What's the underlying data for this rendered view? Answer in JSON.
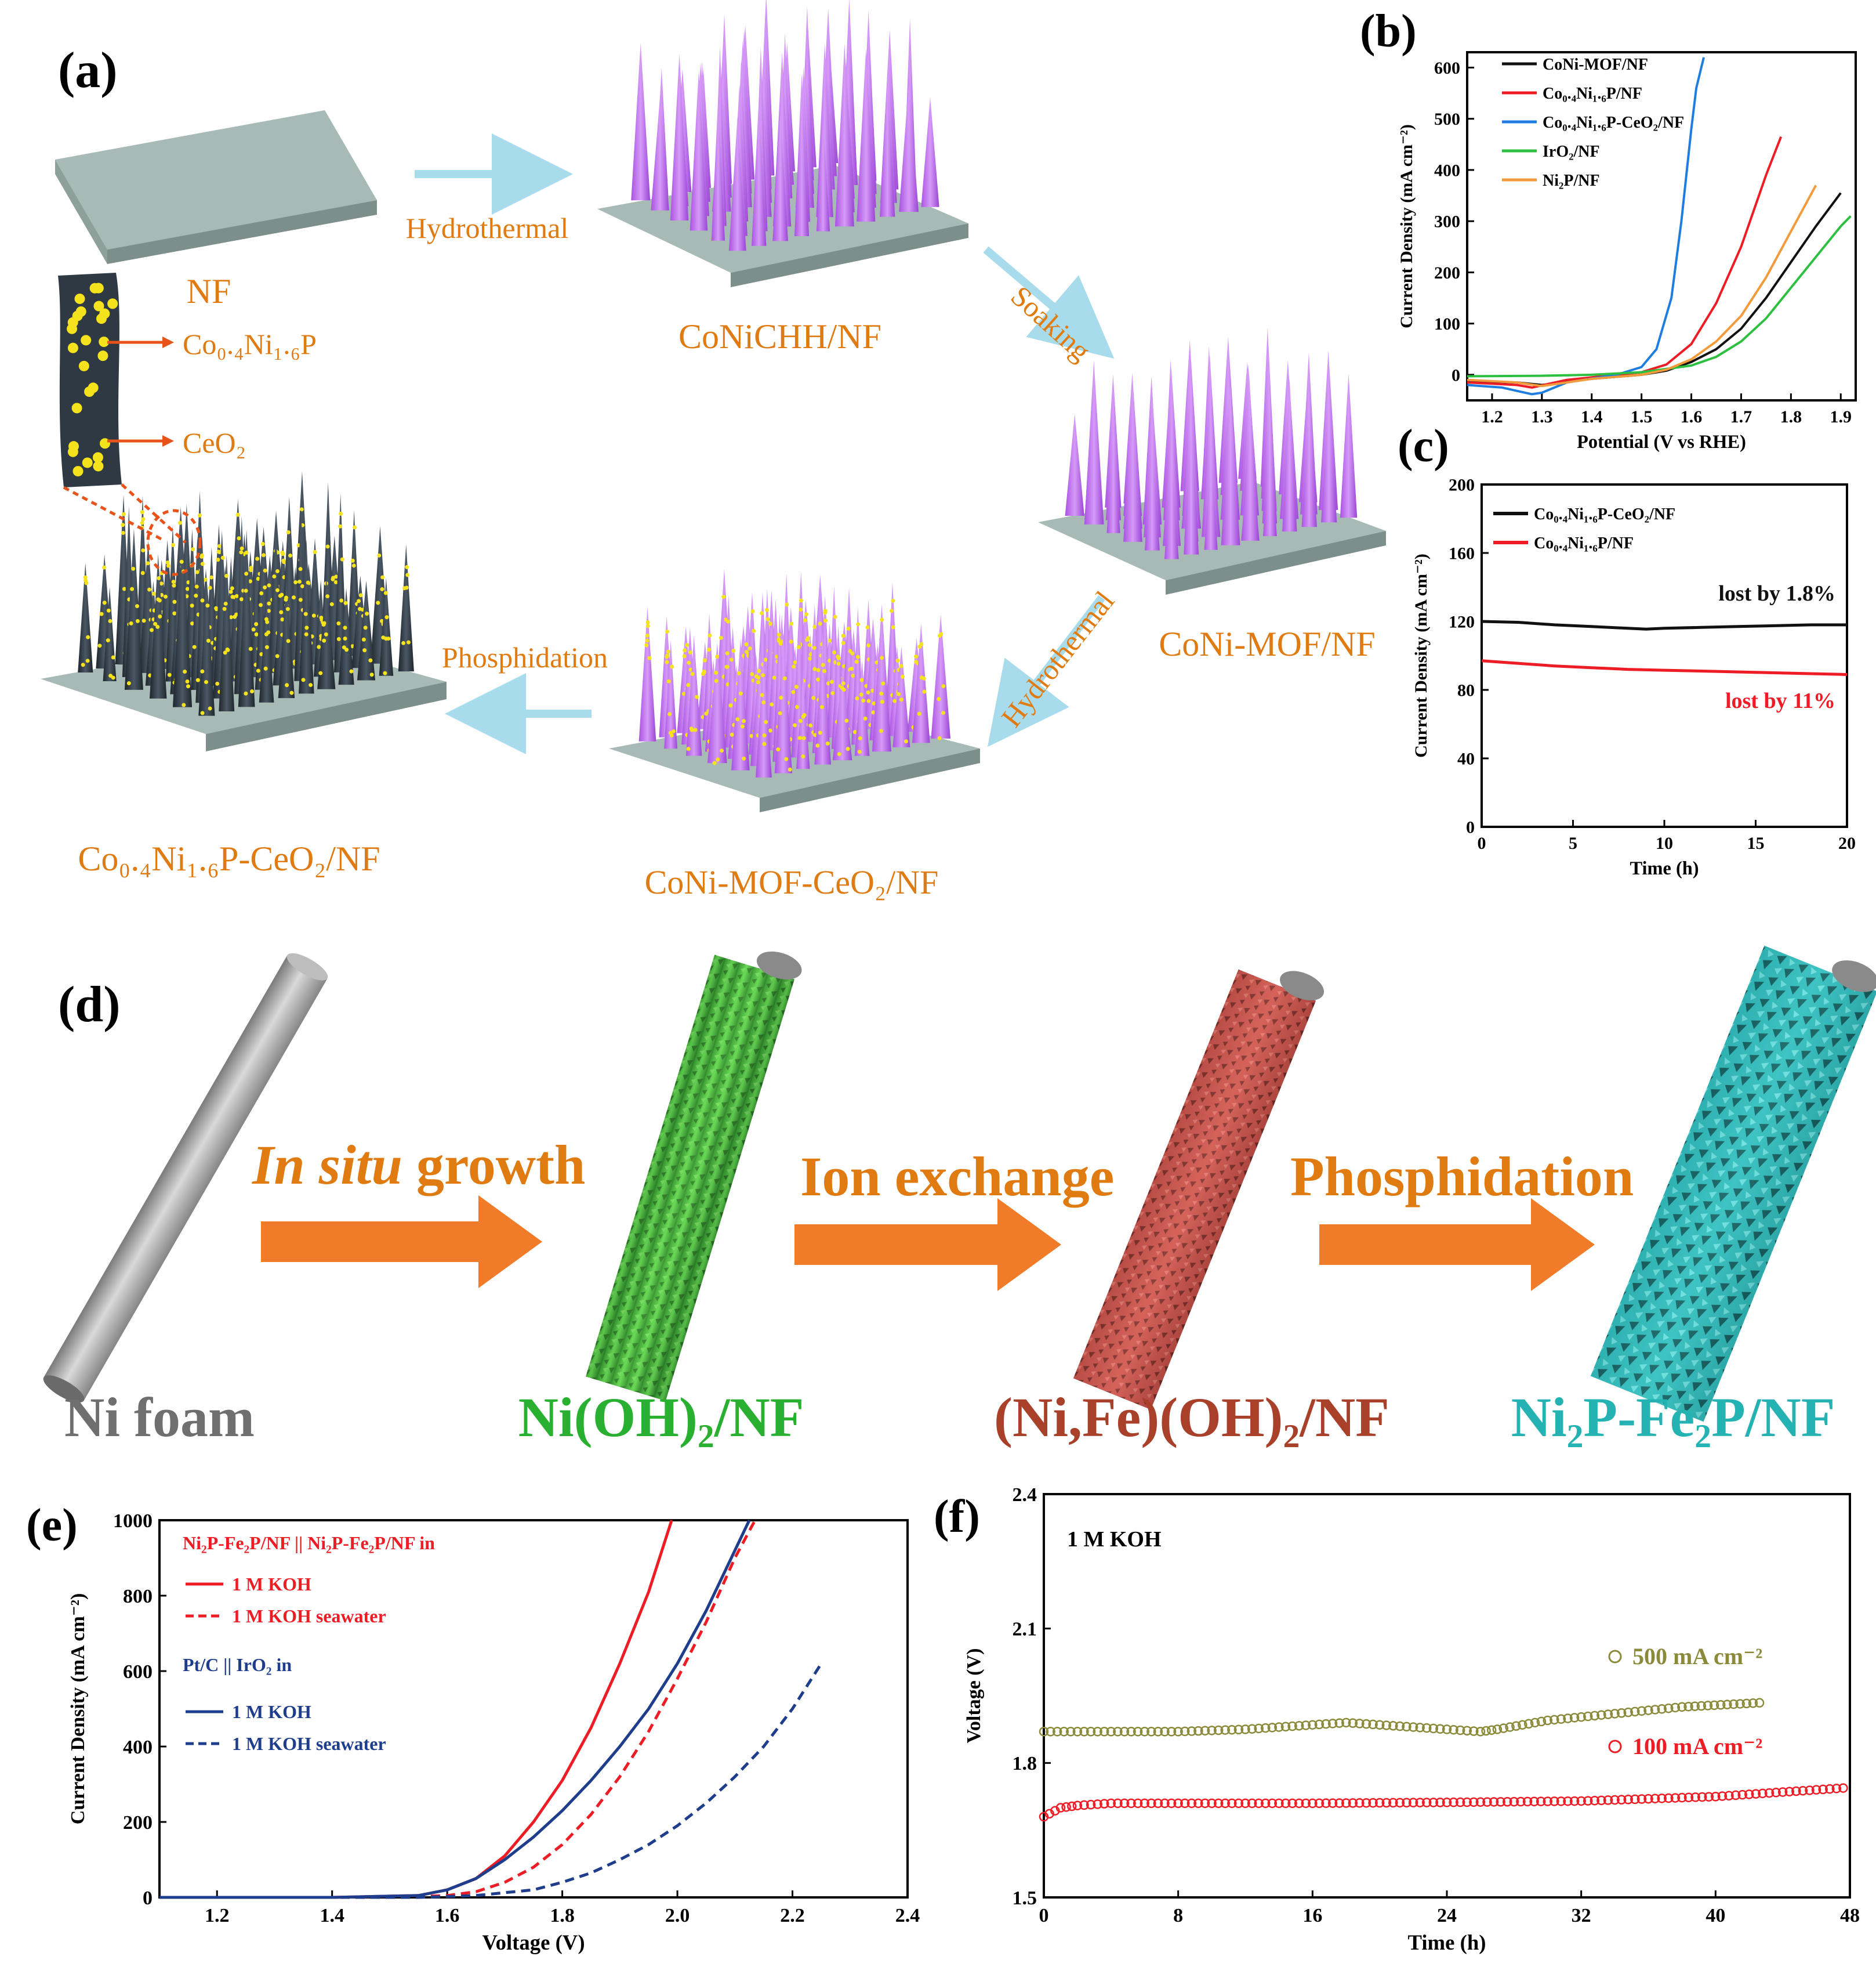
{
  "colors": {
    "orange": "#e07b12",
    "arrow_light": "#a8dcec",
    "purple": "#c77ef0",
    "base": "#9fb2ad",
    "dark": "#2f3943",
    "yellow": "#f4e21c",
    "green_text": "#29b031",
    "brown_text": "#a8402a",
    "teal_text": "#25b2b2",
    "grey_text": "#6f6f6f",
    "red": "#ee1c25",
    "blue": "#1f7de0",
    "navy": "#1e3d8c",
    "green": "#2dbf3f",
    "olive": "#8a8a3a",
    "black": "#111111",
    "gold_orange": "#f39b3b"
  },
  "panel_a": {
    "label": "(a)",
    "nf": "NF",
    "coniochh": "CoNiCHH/NF",
    "conimof": "CoNi-MOF/NF",
    "conimof_ceo2": "CoNi-MOF-CeO₂/NF",
    "final": "Co₀.₄Ni₁.₆P-CeO₂/NF",
    "step_hydrothermal1": "Hydrothermal",
    "step_soaking": "Soaking",
    "step_hydrothermal2": "Hydrothermal",
    "step_phosphidation": "Phosphidation",
    "inset_label_1": "Co₀.₄Ni₁.₆P",
    "inset_label_2": "CeO₂"
  },
  "panel_d": {
    "label": "(d)",
    "ni_foam": "Ni foam",
    "step1_italic": "In situ",
    "step1_rest": " growth",
    "step2": "Ion exchange",
    "step3": "Phosphidation",
    "product1": "Ni(OH)₂/NF",
    "product2": "(Ni,Fe)(OH)₂/NF",
    "product3": "Ni₂P-Fe₂P/NF"
  },
  "chart_data": [
    {
      "id": "b",
      "panel_label": "(b)",
      "type": "line",
      "title": "",
      "xlabel": "Potential (V vs RHE)",
      "ylabel": "Current Density (mA cm⁻²)",
      "xlim": [
        1.15,
        1.93
      ],
      "ylim": [
        -50,
        630
      ],
      "xticks": [
        1.2,
        1.3,
        1.4,
        1.5,
        1.6,
        1.7,
        1.8,
        1.9
      ],
      "yticks": [
        0,
        100,
        200,
        300,
        400,
        500,
        600
      ],
      "legend_position": "top-left",
      "series": [
        {
          "name": "CoNi-MOF/NF",
          "color": "#111111",
          "dash": false,
          "x": [
            1.15,
            1.25,
            1.3,
            1.4,
            1.5,
            1.55,
            1.6,
            1.65,
            1.7,
            1.75,
            1.8,
            1.85,
            1.9
          ],
          "y": [
            -12,
            -15,
            -20,
            -8,
            0,
            8,
            25,
            50,
            90,
            150,
            220,
            290,
            355
          ]
        },
        {
          "name": "Co₀.₄Ni₁.₆P/NF",
          "color": "#ee1c25",
          "dash": false,
          "x": [
            1.15,
            1.25,
            1.28,
            1.35,
            1.45,
            1.5,
            1.55,
            1.6,
            1.65,
            1.7,
            1.75,
            1.78
          ],
          "y": [
            -15,
            -20,
            -25,
            -10,
            0,
            5,
            20,
            60,
            140,
            250,
            390,
            465
          ]
        },
        {
          "name": "Co₀.₄Ni₁.₆P-CeO₂/NF",
          "color": "#1f7de0",
          "dash": false,
          "x": [
            1.15,
            1.22,
            1.28,
            1.3,
            1.35,
            1.45,
            1.5,
            1.53,
            1.56,
            1.58,
            1.6,
            1.61,
            1.625
          ],
          "y": [
            -20,
            -25,
            -38,
            -35,
            -15,
            0,
            15,
            50,
            150,
            300,
            480,
            560,
            620
          ]
        },
        {
          "name": "IrO₂/NF",
          "color": "#2dbf3f",
          "dash": false,
          "x": [
            1.15,
            1.3,
            1.4,
            1.5,
            1.6,
            1.65,
            1.7,
            1.75,
            1.8,
            1.85,
            1.9,
            1.92
          ],
          "y": [
            -3,
            -2,
            0,
            5,
            18,
            35,
            65,
            110,
            170,
            230,
            290,
            310
          ]
        },
        {
          "name": "Ni₂P/NF",
          "color": "#f39b3b",
          "dash": false,
          "x": [
            1.15,
            1.25,
            1.3,
            1.4,
            1.5,
            1.55,
            1.6,
            1.65,
            1.7,
            1.75,
            1.8,
            1.85
          ],
          "y": [
            -10,
            -15,
            -22,
            -8,
            0,
            10,
            30,
            65,
            115,
            190,
            280,
            370
          ]
        }
      ]
    },
    {
      "id": "c",
      "panel_label": "(c)",
      "type": "line",
      "title": "",
      "xlabel": "Time (h)",
      "ylabel": "Current Density (mA cm⁻²)",
      "xlim": [
        0,
        20
      ],
      "ylim": [
        0,
        200
      ],
      "xticks": [
        0,
        5,
        10,
        15,
        20
      ],
      "yticks": [
        0,
        40,
        80,
        120,
        160,
        200
      ],
      "legend_position": "top-left",
      "annotations": [
        "lost by 1.8%",
        "lost by 11%"
      ],
      "series": [
        {
          "name": "Co₀.₄Ni₁.₆P-CeO₂/NF",
          "color": "#111111",
          "dash": false,
          "x": [
            0,
            2,
            4,
            6,
            8,
            9,
            10,
            12,
            14,
            16,
            18,
            20
          ],
          "y": [
            120,
            119.5,
            118,
            117,
            116,
            115.5,
            116,
            116.5,
            117,
            117.5,
            118,
            118
          ]
        },
        {
          "name": "Co₀.₄Ni₁.₆P/NF",
          "color": "#ee1c25",
          "dash": false,
          "x": [
            0,
            2,
            4,
            6,
            8,
            10,
            12,
            14,
            16,
            18,
            20
          ],
          "y": [
            97,
            95.5,
            94,
            93,
            92,
            91.5,
            91,
            90.5,
            90,
            89.5,
            89
          ]
        }
      ]
    },
    {
      "id": "e",
      "panel_label": "(e)",
      "type": "line",
      "title": "",
      "xlabel": "Voltage (V)",
      "ylabel": "Current Density (mA cm⁻²)",
      "xlim": [
        1.1,
        2.4
      ],
      "ylim": [
        0,
        1000
      ],
      "xticks": [
        1.2,
        1.4,
        1.6,
        1.8,
        2.0,
        2.2,
        2.4
      ],
      "yticks": [
        0,
        200,
        400,
        600,
        800,
        1000
      ],
      "legend_position": "top-left",
      "legend_group_1": "Ni₂P-Fe₂P/NF || Ni₂P-Fe₂P/NF in",
      "legend_group_2": "Pt/C || IrO₂ in",
      "series": [
        {
          "name": "1 M KOH",
          "group": 1,
          "color": "#ee1c25",
          "dash": false,
          "x": [
            1.1,
            1.4,
            1.55,
            1.6,
            1.65,
            1.7,
            1.75,
            1.8,
            1.85,
            1.9,
            1.95,
            1.99
          ],
          "y": [
            0,
            0,
            5,
            20,
            50,
            110,
            200,
            310,
            450,
            620,
            810,
            1000
          ]
        },
        {
          "name": "1 M KOH seawater",
          "group": 1,
          "color": "#ee1c25",
          "dash": true,
          "x": [
            1.1,
            1.5,
            1.6,
            1.65,
            1.7,
            1.75,
            1.8,
            1.85,
            1.9,
            1.95,
            2.0,
            2.05,
            2.1,
            2.135
          ],
          "y": [
            0,
            0,
            5,
            15,
            40,
            80,
            140,
            220,
            320,
            440,
            580,
            730,
            900,
            1000
          ]
        },
        {
          "name": "1 M KOH",
          "group": 2,
          "color": "#1e3d8c",
          "dash": false,
          "x": [
            1.1,
            1.4,
            1.55,
            1.6,
            1.65,
            1.7,
            1.75,
            1.8,
            1.85,
            1.9,
            1.95,
            2.0,
            2.05,
            2.1,
            2.125
          ],
          "y": [
            0,
            0,
            5,
            20,
            50,
            100,
            160,
            230,
            310,
            400,
            500,
            620,
            760,
            920,
            1000
          ]
        },
        {
          "name": "1 M KOH seawater",
          "group": 2,
          "color": "#1e3d8c",
          "dash": true,
          "x": [
            1.1,
            1.55,
            1.65,
            1.75,
            1.8,
            1.85,
            1.9,
            1.95,
            2.0,
            2.05,
            2.1,
            2.15,
            2.2,
            2.25
          ],
          "y": [
            0,
            0,
            5,
            20,
            40,
            65,
            100,
            140,
            190,
            250,
            320,
            400,
            500,
            620
          ]
        }
      ]
    },
    {
      "id": "f",
      "panel_label": "(f)",
      "type": "scatter",
      "title": "1 M KOH",
      "xlabel": "Time (h)",
      "ylabel": "Voltage (V)",
      "xlim": [
        0,
        48
      ],
      "ylim": [
        1.5,
        2.4
      ],
      "xticks": [
        0,
        8,
        16,
        24,
        32,
        40,
        48
      ],
      "yticks": [
        1.5,
        1.8,
        2.1,
        2.4
      ],
      "legend_position": "right",
      "series": [
        {
          "name": "500 mA cm⁻²",
          "color": "#8a8a3a",
          "x": [
            0,
            4,
            8,
            12,
            16,
            18,
            20,
            24,
            26,
            27,
            30,
            34,
            38,
            43
          ],
          "y": [
            1.87,
            1.87,
            1.87,
            1.875,
            1.885,
            1.89,
            1.885,
            1.875,
            1.87,
            1.875,
            1.895,
            1.91,
            1.925,
            1.935
          ]
        },
        {
          "name": "100 mA cm⁻²",
          "color": "#ee1c25",
          "x": [
            0,
            1,
            2,
            4,
            8,
            16,
            24,
            32,
            40,
            44,
            48
          ],
          "y": [
            1.68,
            1.7,
            1.705,
            1.71,
            1.71,
            1.71,
            1.712,
            1.715,
            1.725,
            1.735,
            1.745
          ]
        }
      ]
    }
  ]
}
